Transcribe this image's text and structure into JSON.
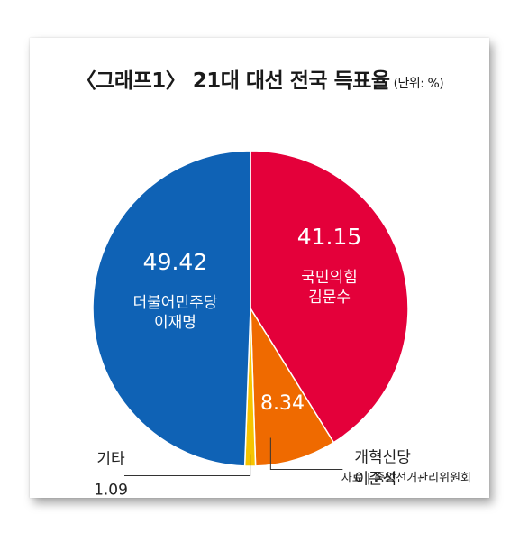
{
  "header": {
    "title": "〈그래프1〉 21대 대선 전국 득표율",
    "unit": "(단위: %)"
  },
  "source": "자료 | 중앙선거관리위원회",
  "chart_data": {
    "type": "pie",
    "title": "〈그래프1〉 21대 대선 전국 득표율",
    "unit": "%",
    "slices": [
      {
        "party": "국민의힘",
        "candidate": "김문수",
        "value": 41.15,
        "value_label": "41.15",
        "color": "#e4003a"
      },
      {
        "party": "개혁신당",
        "candidate": "이준석",
        "value": 8.34,
        "value_label": "8.34",
        "color": "#ef6a00"
      },
      {
        "party": "기타",
        "candidate": "",
        "value": 1.09,
        "value_label": "1.09",
        "color": "#f6c400"
      },
      {
        "party": "더불어민주당",
        "candidate": "이재명",
        "value": 49.42,
        "value_label": "49.42",
        "color": "#0f62b5"
      }
    ]
  }
}
